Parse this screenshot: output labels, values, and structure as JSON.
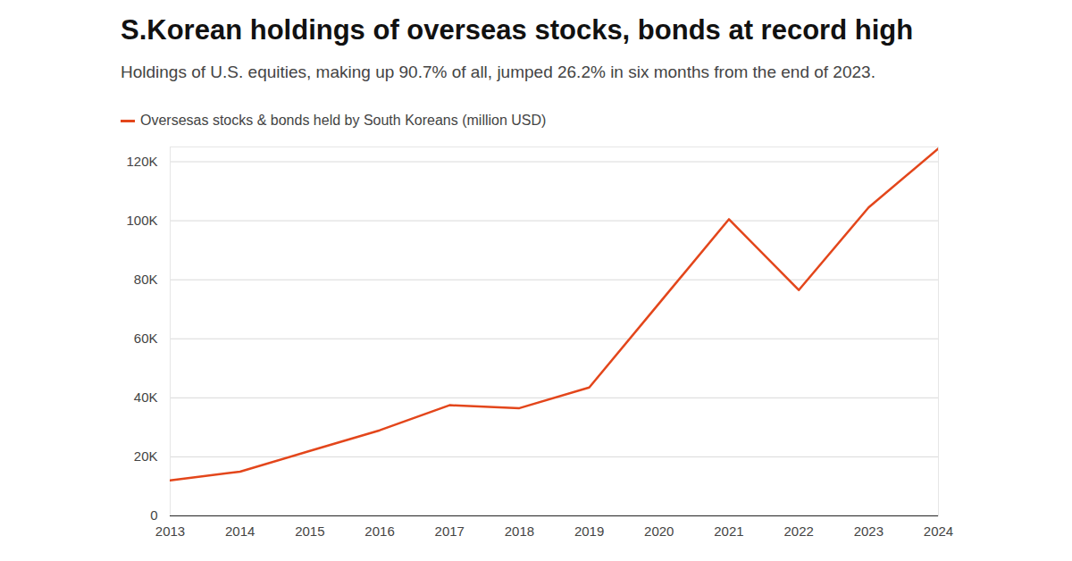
{
  "chart_data": {
    "type": "line",
    "title": "S.Korean holdings of overseas stocks, bonds at record high",
    "subtitle": "Holdings of U.S. equities, making up 90.7% of all, jumped 26.2% in six months from the end of 2023.",
    "x": [
      2013,
      2014,
      2015,
      2016,
      2017,
      2018,
      2019,
      2020,
      2021,
      2022,
      2023,
      2024
    ],
    "series": [
      {
        "name": "Oversesas stocks & bonds held by South Koreans (million USD)",
        "color": "#e3461b",
        "values": [
          12000,
          15000,
          22000,
          29000,
          37500,
          36500,
          43500,
          72000,
          100500,
          76500,
          104500,
          124500
        ]
      }
    ],
    "xlim": [
      2013,
      2024
    ],
    "xticks": [
      2013,
      2014,
      2015,
      2016,
      2017,
      2018,
      2019,
      2020,
      2021,
      2022,
      2023,
      2024
    ],
    "ylim": [
      0,
      125000
    ],
    "yticks": [
      0,
      {
        "value": 20000,
        "label": "20K"
      },
      {
        "value": 40000,
        "label": "40K"
      },
      {
        "value": 60000,
        "label": "60K"
      },
      {
        "value": 80000,
        "label": "80K"
      },
      {
        "value": 100000,
        "label": "100K"
      },
      {
        "value": 120000,
        "label": "120K"
      }
    ],
    "grid": true,
    "legend": "top-left"
  }
}
